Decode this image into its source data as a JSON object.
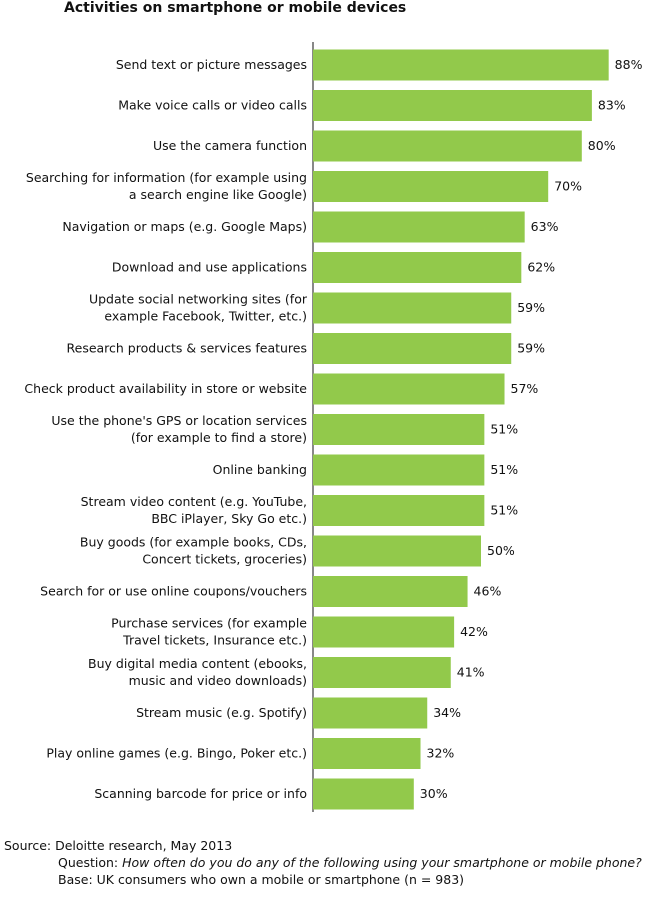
{
  "chart_data": {
    "type": "bar",
    "orientation": "horizontal",
    "title": "Activities on smartphone or mobile devices",
    "categories": [
      [
        "Send text or picture messages"
      ],
      [
        "Make voice calls or video calls"
      ],
      [
        "Use the camera function"
      ],
      [
        "Searching for information (for example using",
        "a search engine like Google)"
      ],
      [
        "Navigation or maps (e.g. Google Maps)"
      ],
      [
        "Download and use applications"
      ],
      [
        "Update social networking sites (for",
        "example Facebook, Twitter, etc.)"
      ],
      [
        "Research products & services features"
      ],
      [
        "Check product availability in store or website"
      ],
      [
        "Use the phone's GPS or location services",
        "(for example to find a store)"
      ],
      [
        "Online banking"
      ],
      [
        "Stream video content (e.g. YouTube,",
        "BBC iPlayer, Sky Go etc.)"
      ],
      [
        "Buy goods (for example books, CDs,",
        "Concert tickets, groceries)"
      ],
      [
        "Search for or use online coupons/vouchers"
      ],
      [
        "Purchase services (for example",
        "Travel tickets, Insurance etc.)"
      ],
      [
        "Buy digital media content (ebooks,",
        "music and video downloads)"
      ],
      [
        "Stream music (e.g. Spotify)"
      ],
      [
        "Play online games (e.g. Bingo, Poker etc.)"
      ],
      [
        "Scanning barcode for price or info"
      ]
    ],
    "values": [
      88,
      83,
      80,
      70,
      63,
      62,
      59,
      59,
      57,
      51,
      51,
      51,
      50,
      46,
      42,
      41,
      34,
      32,
      30
    ],
    "value_labels": [
      "88%",
      "83%",
      "80%",
      "70%",
      "63%",
      "62%",
      "59%",
      "59%",
      "57%",
      "51%",
      "51%",
      "51%",
      "50%",
      "46%",
      "42%",
      "41%",
      "34%",
      "32%",
      "30%"
    ],
    "xlim": [
      0,
      100
    ],
    "grid": false,
    "bar_color": "#92c94b"
  },
  "notes": {
    "source": "Source: Deloitte research, May 2013",
    "question_prefix": "Question: ",
    "question_text": "How often do you do any of the following using your smartphone or mobile phone?",
    "base": "Base: UK consumers who own a mobile or smartphone (n = 983)"
  }
}
